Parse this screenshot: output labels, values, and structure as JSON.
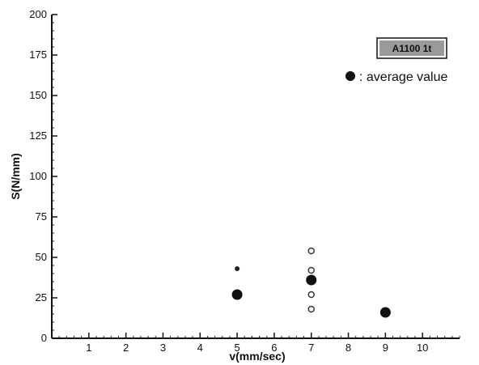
{
  "chart_data": {
    "type": "scatter",
    "xlabel": "v(mm/sec)",
    "ylabel": "S(N/mm)",
    "xlim": [
      0,
      11
    ],
    "ylim": [
      0,
      200
    ],
    "x_ticks": [
      1,
      2,
      3,
      4,
      5,
      6,
      7,
      8,
      9,
      10
    ],
    "y_ticks": [
      0,
      25,
      50,
      75,
      100,
      125,
      150,
      175,
      200
    ],
    "x_minor_step": 0.2,
    "y_minor_step": 5,
    "annotation": "A1100 1t",
    "legend_text": ": average value",
    "legend_position": "top-right",
    "grid": false,
    "series": [
      {
        "values": [
          {
            "x": 5,
            "y": 43
          },
          {
            "x": 7,
            "y": 54
          },
          {
            "x": 7,
            "y": 42
          },
          {
            "x": 7,
            "y": 27
          },
          {
            "x": 7,
            "y": 18
          }
        ]
      },
      {
        "values": [
          {
            "x": 5,
            "y": 27
          },
          {
            "x": 7,
            "y": 36
          },
          {
            "x": 9,
            "y": 16
          }
        ]
      }
    ]
  }
}
